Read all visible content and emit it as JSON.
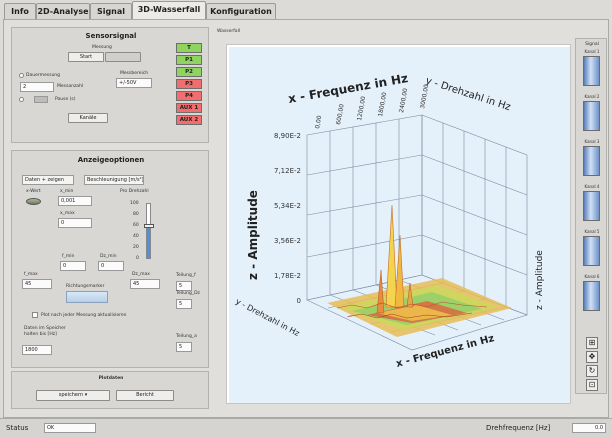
{
  "tabs": [
    {
      "label": "Info"
    },
    {
      "label": "2D-Analyse"
    },
    {
      "label": "Signal"
    },
    {
      "label": "3D-Wasserfall"
    },
    {
      "label": "Konfiguration"
    }
  ],
  "sensor": {
    "title": "Sensorsignal",
    "messung_label": "Messung",
    "start_label": "Start",
    "stop_label": "",
    "dauermessung_label": "Dauermessung",
    "messbereich_label": "Messbereich",
    "messbereich_value": "+/-50V",
    "count_value": "2",
    "count_unit": "Messanzahl",
    "pause_label": "Pause (s)",
    "kanaele_label": "Kanäle"
  },
  "status_buttons": [
    {
      "label": "T",
      "color": "#8fd45f"
    },
    {
      "label": "P1",
      "color": "#8fd45f"
    },
    {
      "label": "P2",
      "color": "#8fd45f"
    },
    {
      "label": "P3",
      "color": "#f26d6d"
    },
    {
      "label": "P4",
      "color": "#f26d6d"
    },
    {
      "label": "AUX 1",
      "color": "#f26d6d"
    },
    {
      "label": "AUX 2",
      "color": "#f26d6d"
    }
  ],
  "anzeige": {
    "title": "Anzeigeoptionen",
    "dropdown1": "Daten + zeigen",
    "dropdown2": "Beschleunigung [m/s²]",
    "x_wert_label": "x-Wert",
    "x_min_label": "x_min",
    "x_min_value": "0,001",
    "x_max_label": "x_max",
    "x_max_value": "0",
    "pro_dreh_label": "Pro Drehzahl",
    "slider_ticks": [
      "100",
      "80",
      "60",
      "40",
      "20",
      "0"
    ],
    "slider_level": 60,
    "f_min_label": "f_min",
    "f_min_value": "0",
    "dz_min_label": "Dz_min",
    "dz_min_value": "0",
    "f_max_label": "f_max",
    "f_max_value": "45",
    "dz_max_label": "Dz_max",
    "dz_max_value": "45",
    "richtungsmarker_label": "Richtungsmarker",
    "teilung_f_label": "Teilung_f",
    "teilung_f_value": "5",
    "teilung_dz_label": "Teilung_Dz",
    "teilung_dz_value": "5",
    "teilung_a_label": "Teilung_a",
    "teilung_a_value": "5",
    "plot_label": "Plot nach jeder Messung aktualisieren",
    "daten_label_1": "Daten im Speicher",
    "daten_label_2": "halten bis [Hz]",
    "daten_value": "1800"
  },
  "persist": {
    "title": "Plotdaten",
    "speichern_label": "speichern",
    "bericht_label": "Bericht"
  },
  "plot": {
    "label": "Wasserfall",
    "x_axis_label": "x - Frequenz in Hz",
    "y_axis_label": "y - Drehzahl in Hz",
    "z_axis_label": "z - Amplitude",
    "z_ticks": [
      "8,90E-2",
      "7,12E-2",
      "5,34E-2",
      "3,56E-2",
      "1,78E-2",
      "0"
    ],
    "top_ticks": [
      "0,00",
      "600,00",
      "1200,00",
      "1800,00",
      "2400,00",
      "3000,00"
    ]
  },
  "signal_sidebar": {
    "title": "Signal",
    "channels": [
      {
        "label": "Kanal 1"
      },
      {
        "label": "Kanal 2"
      },
      {
        "label": "Kanal 3"
      },
      {
        "label": "Kanal 4"
      },
      {
        "label": "Kanal 5"
      },
      {
        "label": "Kanal 6"
      }
    ]
  },
  "statusbar": {
    "status_label": "Status",
    "status_value": "OK",
    "drehfrequenz_label": "Drehfrequenz [Hz]",
    "drehfrequenz_value": "0.0"
  }
}
